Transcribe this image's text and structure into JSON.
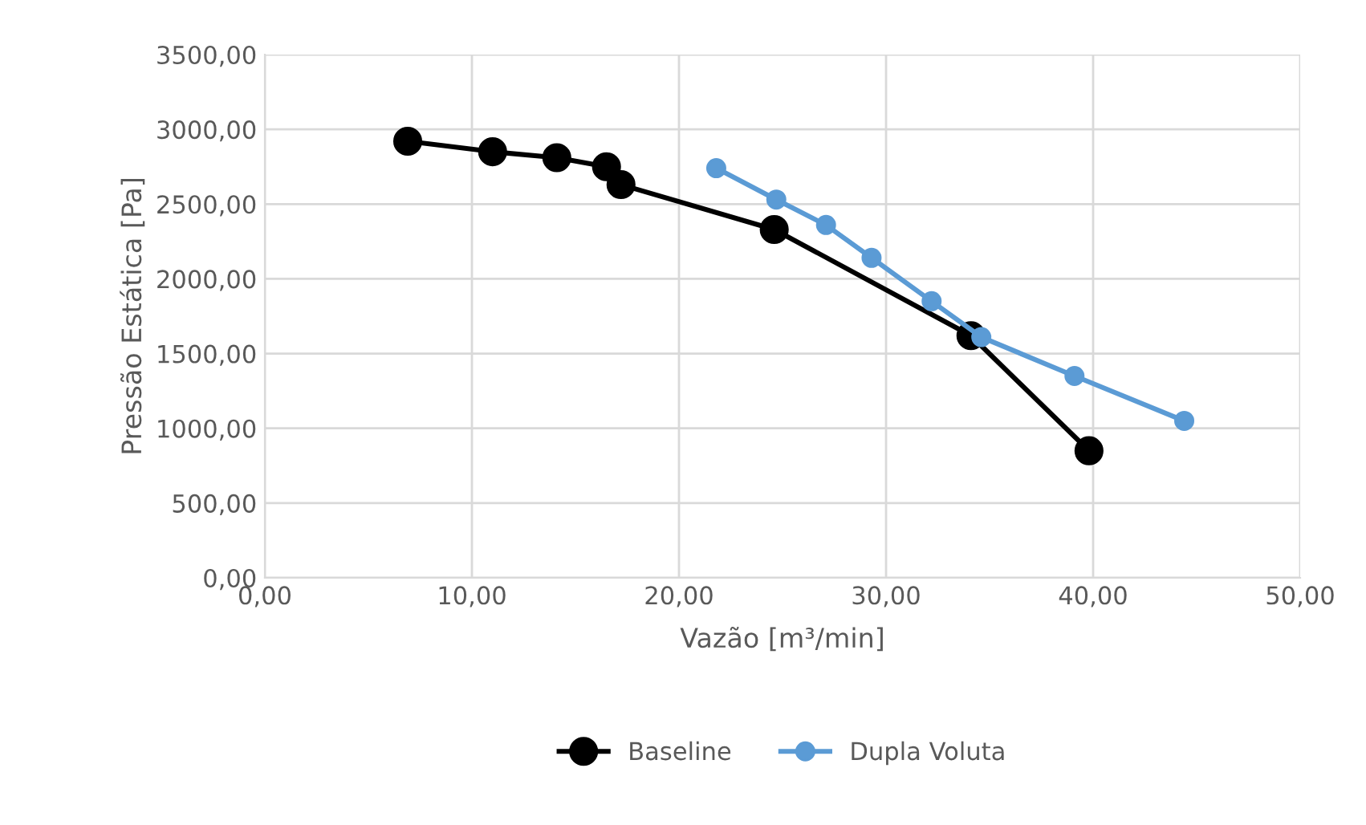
{
  "chart_data": {
    "type": "line",
    "xlabel": "Vazão [m³/min]",
    "ylabel": "Pressão Estática [Pa]",
    "xlim": [
      0,
      50
    ],
    "xticks": [
      {
        "value": 0,
        "label": "0,00"
      },
      {
        "value": 10,
        "label": "10,00"
      },
      {
        "value": 20,
        "label": "20,00"
      },
      {
        "value": 30,
        "label": "30,00"
      },
      {
        "value": 40,
        "label": "40,00"
      },
      {
        "value": 50,
        "label": "50,00"
      }
    ],
    "ylim": [
      0,
      3500
    ],
    "yticks": [
      {
        "value": 0,
        "label": "0,00"
      },
      {
        "value": 500,
        "label": "500,00"
      },
      {
        "value": 1000,
        "label": "1000,00"
      },
      {
        "value": 1500,
        "label": "1500,00"
      },
      {
        "value": 2000,
        "label": "2000,00"
      },
      {
        "value": 2500,
        "label": "2500,00"
      },
      {
        "value": 3000,
        "label": "3000,00"
      },
      {
        "value": 3500,
        "label": "3500,00"
      }
    ],
    "grid": true,
    "legend": "bottom",
    "marker": "circle",
    "line_style": "solid",
    "series": [
      {
        "name": "Baseline",
        "color": "#000000",
        "x": [
          6.9,
          11.0,
          14.1,
          16.5,
          17.2,
          24.6,
          34.1,
          39.8
        ],
        "values": [
          2920,
          2850,
          2810,
          2750,
          2630,
          2330,
          1620,
          850
        ]
      },
      {
        "name": "Dupla Voluta",
        "color": "#5b9bd5",
        "x": [
          21.8,
          24.7,
          27.1,
          29.3,
          32.2,
          34.6,
          39.1,
          44.4
        ],
        "values": [
          2740,
          2530,
          2360,
          2140,
          1850,
          1610,
          1350,
          1050
        ]
      }
    ]
  }
}
